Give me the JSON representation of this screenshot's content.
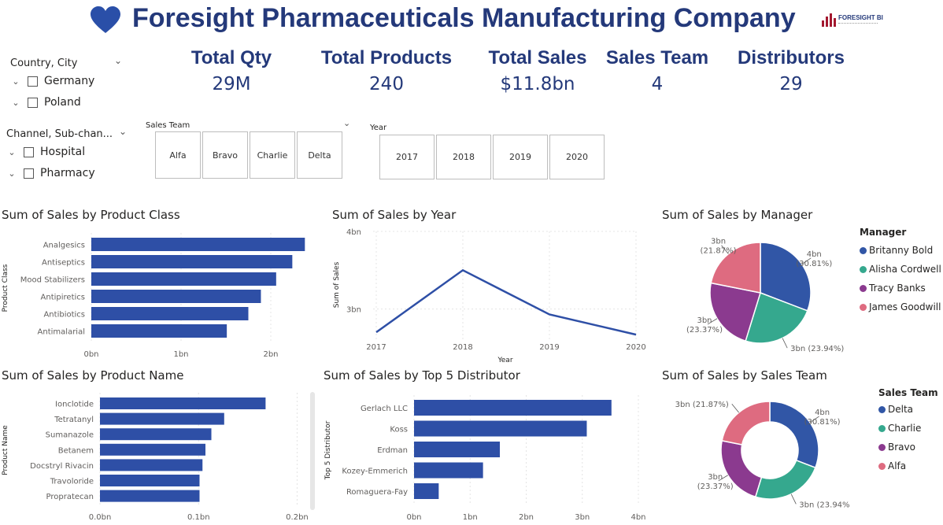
{
  "header": {
    "title": "Foresight Pharmaceuticals Manufacturing Company",
    "logo_text": "FORESIGHT BI",
    "heart_color": "#2a4fa8"
  },
  "kpis": [
    {
      "label": "Total Qty",
      "value": "29M"
    },
    {
      "label": "Total Products",
      "value": "240"
    },
    {
      "label": "Total Sales",
      "value": "$11.8bn"
    },
    {
      "label": "Sales Team",
      "value": "4"
    },
    {
      "label": "Distributors",
      "value": "29"
    }
  ],
  "filters": {
    "country": {
      "title": "Country, City",
      "items": [
        "Germany",
        "Poland"
      ]
    },
    "channel": {
      "title": "Channel, Sub-chan...",
      "items": [
        "Hospital",
        "Pharmacy"
      ]
    },
    "sales_team": {
      "title": "Sales Team",
      "items": [
        "Alfa",
        "Bravo",
        "Charlie",
        "Delta"
      ]
    },
    "year": {
      "title": "Year",
      "items": [
        "2017",
        "2018",
        "2019",
        "2020"
      ]
    }
  },
  "colors": {
    "bar": "#2e4fa6",
    "line": "#2e4fa6",
    "delta": "#3156a6",
    "charlie": "#35a88e",
    "bravo": "#8b3a8f",
    "alfa": "#de6b80",
    "title_blue": "#24397a"
  },
  "chart_data": [
    {
      "id": "product_class",
      "type": "bar",
      "orientation": "horizontal",
      "title": "Sum of Sales by Product Class",
      "ylabel": "Product Class",
      "categories": [
        "Analgesics",
        "Antiseptics",
        "Mood Stabilizers",
        "Antipiretics",
        "Antibiotics",
        "Antimalarial"
      ],
      "values": [
        2.38,
        2.24,
        2.06,
        1.89,
        1.75,
        1.51
      ],
      "xlim": [
        0,
        2.5
      ],
      "xticks": [
        {
          "v": 0,
          "label": "0bn"
        },
        {
          "v": 1,
          "label": "1bn"
        },
        {
          "v": 2,
          "label": "2bn"
        }
      ]
    },
    {
      "id": "sales_by_year",
      "type": "line",
      "title": "Sum of Sales by Year",
      "xlabel": "Year",
      "ylabel": "Sum of Sales",
      "x": [
        "2017",
        "2018",
        "2019",
        "2020"
      ],
      "values": [
        2.7,
        3.5,
        2.93,
        2.67
      ],
      "ylim": [
        2.6,
        4.0
      ],
      "yticks": [
        {
          "v": 3,
          "label": "3bn"
        },
        {
          "v": 4,
          "label": "4bn"
        }
      ]
    },
    {
      "id": "sales_by_manager",
      "type": "pie",
      "title": "Sum of Sales by Manager",
      "legend_title": "Manager",
      "slices": [
        {
          "name": "Britanny Bold",
          "value": 30.81,
          "label": "4bn",
          "pct": "(30.81%)"
        },
        {
          "name": "Alisha Cordwell",
          "value": 23.94,
          "label": "3bn (23.94%)",
          "pct": ""
        },
        {
          "name": "Tracy Banks",
          "value": 23.37,
          "label": "3bn",
          "pct": "(23.37%)"
        },
        {
          "name": "James Goodwill",
          "value": 21.87,
          "label": "3bn",
          "pct": "(21.87%)"
        }
      ]
    },
    {
      "id": "product_name",
      "type": "bar",
      "orientation": "horizontal",
      "title": "Sum of Sales by Product Name",
      "ylabel": "Product Name",
      "categories": [
        "Ionclotide",
        "Tetratanyl",
        "Sumanazole",
        "Betanem",
        "Docstryl Rivacin",
        "Travoloride",
        "Propratecan"
      ],
      "values": [
        0.168,
        0.126,
        0.113,
        0.107,
        0.104,
        0.101,
        0.101
      ],
      "xlim": [
        0,
        0.21
      ],
      "xticks": [
        {
          "v": 0,
          "label": "0.0bn"
        },
        {
          "v": 0.1,
          "label": "0.1bn"
        },
        {
          "v": 0.2,
          "label": "0.2bn"
        }
      ]
    },
    {
      "id": "top5_distributor",
      "type": "bar",
      "orientation": "horizontal",
      "title": "Sum of Sales by Top 5 Distributor",
      "ylabel": "Top 5 Distributor",
      "categories": [
        "Gerlach LLC",
        "Koss",
        "Erdman",
        "Kozey-Emmerich",
        "Romaguera-Fay"
      ],
      "values": [
        3.52,
        3.08,
        1.53,
        1.23,
        0.44
      ],
      "xlim": [
        0,
        4.0
      ],
      "xticks": [
        {
          "v": 0,
          "label": "0bn"
        },
        {
          "v": 1,
          "label": "1bn"
        },
        {
          "v": 2,
          "label": "2bn"
        },
        {
          "v": 3,
          "label": "3bn"
        },
        {
          "v": 4,
          "label": "4bn"
        }
      ]
    },
    {
      "id": "sales_by_team",
      "type": "donut",
      "title": "Sum of Sales by Sales Team",
      "legend_title": "Sales Team",
      "slices": [
        {
          "name": "Delta",
          "value": 30.81,
          "label": "4bn",
          "pct": "(30.81%)"
        },
        {
          "name": "Charlie",
          "value": 23.94,
          "label": "3bn (23.94%)",
          "pct": ""
        },
        {
          "name": "Bravo",
          "value": 23.37,
          "label": "3bn",
          "pct": "(23.37%)"
        },
        {
          "name": "Alfa",
          "value": 21.87,
          "label": "3bn (21.87%)",
          "pct": ""
        }
      ]
    }
  ]
}
